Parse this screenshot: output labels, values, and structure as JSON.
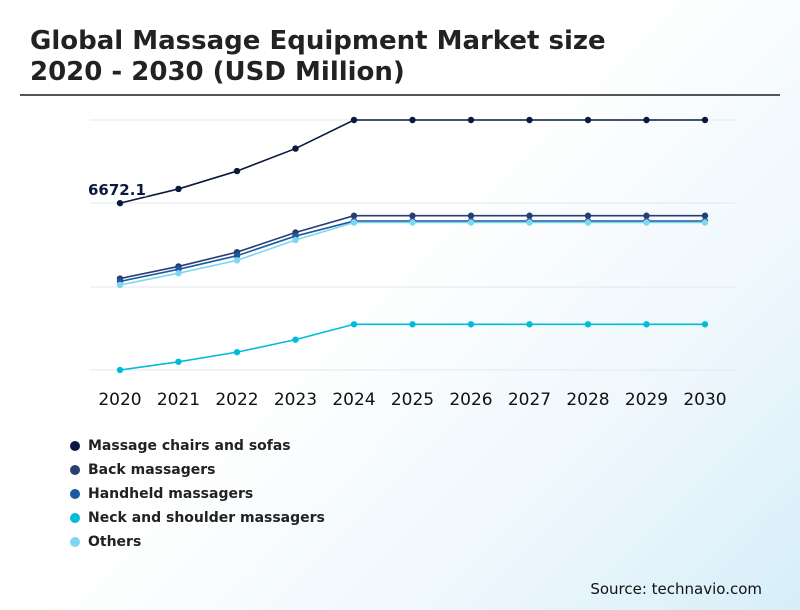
{
  "title_line1": "Global Massage Equipment Market size",
  "title_line2": "2020 - 2030 (USD Million)",
  "source": "Source: technavio.com",
  "chart_data": {
    "type": "line",
    "x": [
      "2020",
      "2021",
      "2022",
      "2023",
      "2024",
      "2025",
      "2026",
      "2027",
      "2028",
      "2029",
      "2030"
    ],
    "ylim": [
      0,
      10500
    ],
    "grid": true,
    "legend_position": "bottom-left",
    "annotations": [
      {
        "series": "Massage chairs and sofas",
        "x": "2020",
        "label": "6672.1"
      }
    ],
    "series": [
      {
        "name": "Massage chairs and sofas",
        "color": "#0a1a3f",
        "values": [
          6672.1,
          7070,
          7570,
          8200,
          9000,
          9000,
          9000,
          9000,
          9000,
          9000,
          9000
        ]
      },
      {
        "name": "Back massagers",
        "color": "#2a3d73",
        "values": [
          4560,
          4900,
          5300,
          5850,
          6320,
          6320,
          6320,
          6320,
          6320,
          6320,
          6320
        ]
      },
      {
        "name": "Handheld massagers",
        "color": "#1c5aa0",
        "values": [
          4480,
          4820,
          5200,
          5750,
          6170,
          6170,
          6170,
          6170,
          6170,
          6170,
          6170
        ]
      },
      {
        "name": "Neck and shoulder massagers",
        "color": "#00bcd8",
        "values": [
          2000,
          2230,
          2500,
          2850,
          3280,
          3280,
          3280,
          3280,
          3280,
          3280,
          3280
        ]
      },
      {
        "name": "Others",
        "color": "#7fd6f0",
        "values": [
          4380,
          4710,
          5070,
          5640,
          6130,
          6130,
          6130,
          6130,
          6130,
          6130,
          6130
        ]
      }
    ]
  }
}
